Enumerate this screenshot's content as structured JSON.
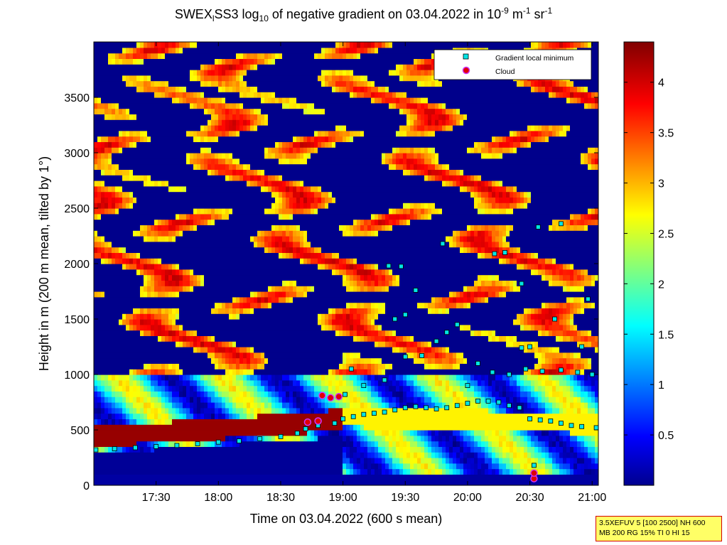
{
  "title": {
    "prefix": "SWEX",
    "sub1": "l",
    "mid": "SS3 log",
    "sub2": "10",
    "rest": " of negative gradient on 03.04.2022 in 10",
    "sup1": "-9",
    "unit1": " m",
    "sup2": "-1",
    "unit2": " sr",
    "sup3": "-1"
  },
  "info": {
    "line1": "3.5XEFUV 5 [100 2500] NH 600",
    "line2": "MB 200 RG 15% TI 0 HI 15"
  },
  "chart_data": {
    "type": "heatmap",
    "xlabel": "Time on 03.04.2022 (600 s mean)",
    "ylabel": "Height in m (200 m mean, tilted by 1°)",
    "x_ticks": [
      "17:30",
      "18:00",
      "18:30",
      "19:00",
      "19:30",
      "20:00",
      "20:30",
      "21:00"
    ],
    "x_tick_minutes": [
      1050,
      1080,
      1110,
      1140,
      1170,
      1200,
      1230,
      1260
    ],
    "xlim": [
      1020,
      1263
    ],
    "y_ticks": [
      "0",
      "500",
      "1000",
      "1500",
      "2000",
      "2500",
      "3000",
      "3500"
    ],
    "y_tick_values": [
      0,
      500,
      1000,
      1500,
      2000,
      2500,
      3000,
      3500
    ],
    "ylim": [
      0,
      4000
    ],
    "colorbar": {
      "ticks": [
        "0.5",
        "1",
        "1.5",
        "2",
        "2.5",
        "3",
        "3.5",
        "4"
      ],
      "tick_values": [
        0.5,
        1,
        1.5,
        2,
        2.5,
        3,
        3.5,
        4
      ],
      "range": [
        0,
        4.4
      ],
      "colormap": "jet"
    },
    "legend": {
      "placement": "top-right",
      "entries": [
        {
          "label": "Gradient local minimum",
          "marker": "square",
          "color": "#00e5e5"
        },
        {
          "label": "Cloud",
          "marker": "circle",
          "color": "#e00000",
          "edge": "#cc33ff"
        }
      ]
    },
    "series": [
      {
        "name": "Gradient local minimum",
        "points": [
          [
            1021,
            320
          ],
          [
            1030,
            330
          ],
          [
            1040,
            340
          ],
          [
            1050,
            350
          ],
          [
            1060,
            360
          ],
          [
            1070,
            375
          ],
          [
            1080,
            390
          ],
          [
            1090,
            400
          ],
          [
            1100,
            420
          ],
          [
            1110,
            440
          ],
          [
            1118,
            470
          ],
          [
            1122,
            510
          ],
          [
            1128,
            540
          ],
          [
            1136,
            560
          ],
          [
            1140,
            600
          ],
          [
            1145,
            620
          ],
          [
            1150,
            640
          ],
          [
            1155,
            650
          ],
          [
            1160,
            660
          ],
          [
            1165,
            680
          ],
          [
            1170,
            700
          ],
          [
            1175,
            710
          ],
          [
            1180,
            700
          ],
          [
            1185,
            690
          ],
          [
            1190,
            700
          ],
          [
            1195,
            720
          ],
          [
            1200,
            740
          ],
          [
            1205,
            760
          ],
          [
            1210,
            760
          ],
          [
            1215,
            750
          ],
          [
            1220,
            720
          ],
          [
            1225,
            700
          ],
          [
            1230,
            600
          ],
          [
            1235,
            590
          ],
          [
            1240,
            580
          ],
          [
            1245,
            560
          ],
          [
            1250,
            540
          ],
          [
            1255,
            530
          ],
          [
            1262,
            520
          ],
          [
            1141,
            820
          ],
          [
            1144,
            1050
          ],
          [
            1150,
            900
          ],
          [
            1160,
            950
          ],
          [
            1170,
            1160
          ],
          [
            1178,
            1170
          ],
          [
            1185,
            1300
          ],
          [
            1190,
            1380
          ],
          [
            1195,
            1450
          ],
          [
            1200,
            900
          ],
          [
            1205,
            1100
          ],
          [
            1212,
            1020
          ],
          [
            1220,
            1000
          ],
          [
            1228,
            1050
          ],
          [
            1236,
            1030
          ],
          [
            1245,
            1040
          ],
          [
            1253,
            1020
          ],
          [
            1260,
            1000
          ],
          [
            1162,
            1980
          ],
          [
            1168,
            1975
          ],
          [
            1175,
            1760
          ],
          [
            1188,
            2180
          ],
          [
            1213,
            2090
          ],
          [
            1218,
            2100
          ],
          [
            1226,
            1820
          ],
          [
            1234,
            2330
          ],
          [
            1245,
            2360
          ],
          [
            1258,
            1680
          ],
          [
            1170,
            1540
          ],
          [
            1165,
            1500
          ],
          [
            1226,
            1240
          ],
          [
            1230,
            1250
          ],
          [
            1242,
            1500
          ],
          [
            1255,
            1250
          ],
          [
            1232,
            180
          ]
        ]
      },
      {
        "name": "Cloud",
        "points": [
          [
            1130,
            810
          ],
          [
            1134,
            790
          ],
          [
            1138,
            800
          ],
          [
            1123,
            570
          ],
          [
            1128,
            580
          ],
          [
            1232,
            60
          ],
          [
            1232,
            110
          ]
        ]
      }
    ]
  }
}
